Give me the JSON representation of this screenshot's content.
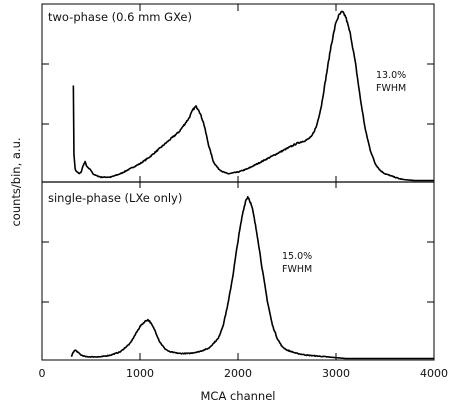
{
  "chart_data": {
    "type": "line",
    "xlabel": "MCA channel",
    "ylabel": "counts/bin, a.u.",
    "xlim": [
      0,
      4000
    ],
    "x_ticks": [
      0,
      1000,
      2000,
      3000,
      4000
    ],
    "x_tick_labels": [
      "0",
      "1000",
      "2000",
      "3000",
      "4000"
    ],
    "grid": false,
    "panels": [
      {
        "id": "top",
        "title": "two-phase (0.6 mm GXe)",
        "annotation": [
          "13.0%",
          "FWHM"
        ],
        "ylim": [
          0,
          1
        ],
        "x": [
          320,
          325,
          340,
          380,
          400,
          420,
          440,
          460,
          480,
          500,
          520,
          550,
          600,
          700,
          800,
          900,
          1000,
          1100,
          1200,
          1300,
          1400,
          1450,
          1500,
          1540,
          1570,
          1600,
          1650,
          1700,
          1750,
          1800,
          1850,
          1900,
          2000,
          2100,
          2200,
          2300,
          2400,
          2500,
          2600,
          2700,
          2750,
          2800,
          2850,
          2900,
          2950,
          3000,
          3030,
          3060,
          3080,
          3100,
          3150,
          3200,
          3250,
          3300,
          3350,
          3400,
          3450,
          3500,
          3550,
          3600,
          3650,
          3700,
          3800,
          4000
        ],
        "y": [
          0.57,
          0.16,
          0.06,
          0.04,
          0.05,
          0.09,
          0.11,
          0.08,
          0.07,
          0.06,
          0.04,
          0.03,
          0.02,
          0.02,
          0.04,
          0.07,
          0.1,
          0.14,
          0.19,
          0.24,
          0.29,
          0.33,
          0.37,
          0.42,
          0.44,
          0.42,
          0.34,
          0.21,
          0.11,
          0.07,
          0.05,
          0.04,
          0.05,
          0.07,
          0.1,
          0.13,
          0.16,
          0.19,
          0.22,
          0.24,
          0.26,
          0.32,
          0.44,
          0.62,
          0.8,
          0.94,
          0.98,
          1.0,
          0.99,
          0.97,
          0.86,
          0.69,
          0.48,
          0.3,
          0.18,
          0.1,
          0.06,
          0.04,
          0.03,
          0.02,
          0.01,
          0.005,
          0.0,
          0.0
        ]
      },
      {
        "id": "bottom",
        "title": "single-phase (LXe only)",
        "annotation": [
          "15.0%",
          "FWHM"
        ],
        "ylim": [
          0,
          1
        ],
        "x": [
          300,
          320,
          340,
          360,
          380,
          400,
          450,
          500,
          600,
          700,
          800,
          900,
          950,
          1000,
          1050,
          1080,
          1100,
          1150,
          1200,
          1250,
          1300,
          1400,
          1500,
          1600,
          1700,
          1800,
          1850,
          1900,
          1950,
          2000,
          2050,
          2080,
          2100,
          2120,
          2150,
          2200,
          2250,
          2300,
          2350,
          2400,
          2450,
          2500,
          2550,
          2600,
          2700,
          2800,
          2900,
          3000,
          3100,
          3300,
          3500,
          4000
        ],
        "y": [
          0.01,
          0.04,
          0.05,
          0.04,
          0.03,
          0.02,
          0.01,
          0.01,
          0.01,
          0.02,
          0.04,
          0.09,
          0.14,
          0.19,
          0.22,
          0.23,
          0.22,
          0.17,
          0.1,
          0.06,
          0.04,
          0.03,
          0.03,
          0.04,
          0.06,
          0.12,
          0.2,
          0.33,
          0.5,
          0.7,
          0.87,
          0.94,
          0.96,
          0.94,
          0.88,
          0.72,
          0.52,
          0.34,
          0.2,
          0.12,
          0.07,
          0.05,
          0.04,
          0.03,
          0.02,
          0.015,
          0.01,
          0.005,
          0.0,
          0.0,
          0.0,
          0.0
        ]
      }
    ]
  }
}
